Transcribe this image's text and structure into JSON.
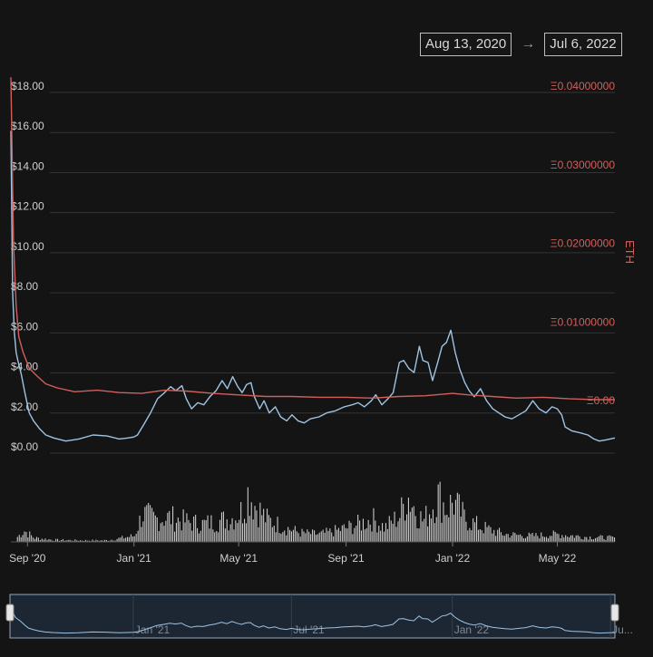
{
  "date_range": {
    "start": "Aug 13, 2020",
    "arrow": "→",
    "end": "Jul 6, 2022"
  },
  "chart_data": {
    "type": "line",
    "title": "",
    "x_start": "2020-08-13",
    "x_end": "2022-07-06",
    "x_ticks": [
      {
        "date": "2020-09-01",
        "label": "Sep '20"
      },
      {
        "date": "2021-01-01",
        "label": "Jan '21"
      },
      {
        "date": "2021-05-01",
        "label": "May '21"
      },
      {
        "date": "2021-09-01",
        "label": "Sep '21"
      },
      {
        "date": "2022-01-01",
        "label": "Jan '22"
      },
      {
        "date": "2022-05-01",
        "label": "May '22"
      }
    ],
    "y_left": {
      "label": "",
      "ylim": [
        0,
        18
      ],
      "ticks": [
        {
          "value": 0,
          "label": "$0.00"
        },
        {
          "value": 2,
          "label": "$2.00"
        },
        {
          "value": 4,
          "label": "$4.00"
        },
        {
          "value": 6,
          "label": "$6.00"
        },
        {
          "value": 8,
          "label": "$8.00"
        },
        {
          "value": 10,
          "label": "$10.00"
        },
        {
          "value": 12,
          "label": "$12.00"
        },
        {
          "value": 14,
          "label": "$14.00"
        },
        {
          "value": 16,
          "label": "$16.00"
        },
        {
          "value": 18,
          "label": "$18.00"
        }
      ]
    },
    "y_right": {
      "label": "ETH",
      "ticks": [
        {
          "value": 0,
          "label": "Ξ0.00"
        },
        {
          "value": 0.01,
          "label": "Ξ0.01000000"
        },
        {
          "value": 0.02,
          "label": "Ξ0.02000000"
        },
        {
          "value": 0.03,
          "label": "Ξ0.03000000"
        },
        {
          "value": 0.04,
          "label": "Ξ0.04000000"
        }
      ]
    },
    "series": [
      {
        "color": "#9fc3e3",
        "axis": "left",
        "points": [
          [
            "2020-08-13",
            16.0
          ],
          [
            "2020-08-15",
            8.0
          ],
          [
            "2020-08-17",
            6.0
          ],
          [
            "2020-08-19",
            5.0
          ],
          [
            "2020-08-21",
            4.6
          ],
          [
            "2020-08-25",
            3.9
          ],
          [
            "2020-08-29",
            3.0
          ],
          [
            "2020-09-03",
            2.0
          ],
          [
            "2020-09-08",
            1.6
          ],
          [
            "2020-09-15",
            1.2
          ],
          [
            "2020-09-22",
            0.9
          ],
          [
            "2020-10-01",
            0.75
          ],
          [
            "2020-10-15",
            0.6
          ],
          [
            "2020-10-30",
            0.7
          ],
          [
            "2020-11-15",
            0.9
          ],
          [
            "2020-12-01",
            0.85
          ],
          [
            "2020-12-15",
            0.7
          ],
          [
            "2020-12-25",
            0.75
          ],
          [
            "2021-01-01",
            0.8
          ],
          [
            "2021-01-05",
            0.9
          ],
          [
            "2021-01-12",
            1.4
          ],
          [
            "2021-01-20",
            2.0
          ],
          [
            "2021-01-28",
            2.7
          ],
          [
            "2021-02-05",
            3.0
          ],
          [
            "2021-02-12",
            3.3
          ],
          [
            "2021-02-18",
            3.1
          ],
          [
            "2021-02-25",
            3.35
          ],
          [
            "2021-03-02",
            2.7
          ],
          [
            "2021-03-08",
            2.2
          ],
          [
            "2021-03-15",
            2.5
          ],
          [
            "2021-03-22",
            2.4
          ],
          [
            "2021-03-29",
            2.8
          ],
          [
            "2021-04-05",
            3.1
          ],
          [
            "2021-04-12",
            3.6
          ],
          [
            "2021-04-18",
            3.2
          ],
          [
            "2021-04-24",
            3.8
          ],
          [
            "2021-04-30",
            3.3
          ],
          [
            "2021-05-05",
            3.0
          ],
          [
            "2021-05-10",
            3.4
          ],
          [
            "2021-05-15",
            3.5
          ],
          [
            "2021-05-19",
            2.8
          ],
          [
            "2021-05-25",
            2.2
          ],
          [
            "2021-05-30",
            2.6
          ],
          [
            "2021-06-05",
            2.0
          ],
          [
            "2021-06-12",
            2.3
          ],
          [
            "2021-06-18",
            1.8
          ],
          [
            "2021-06-25",
            1.6
          ],
          [
            "2021-07-01",
            1.9
          ],
          [
            "2021-07-08",
            1.6
          ],
          [
            "2021-07-15",
            1.5
          ],
          [
            "2021-07-22",
            1.7
          ],
          [
            "2021-08-01",
            1.8
          ],
          [
            "2021-08-10",
            2.0
          ],
          [
            "2021-08-20",
            2.1
          ],
          [
            "2021-08-30",
            2.3
          ],
          [
            "2021-09-08",
            2.4
          ],
          [
            "2021-09-15",
            2.5
          ],
          [
            "2021-09-22",
            2.3
          ],
          [
            "2021-09-30",
            2.6
          ],
          [
            "2021-10-05",
            2.9
          ],
          [
            "2021-10-12",
            2.4
          ],
          [
            "2021-10-19",
            2.7
          ],
          [
            "2021-10-25",
            3.0
          ],
          [
            "2021-11-01",
            4.5
          ],
          [
            "2021-11-06",
            4.6
          ],
          [
            "2021-11-12",
            4.2
          ],
          [
            "2021-11-18",
            4.0
          ],
          [
            "2021-11-24",
            5.3
          ],
          [
            "2021-11-28",
            4.6
          ],
          [
            "2021-12-04",
            4.5
          ],
          [
            "2021-12-09",
            3.6
          ],
          [
            "2021-12-15",
            4.5
          ],
          [
            "2021-12-20",
            5.3
          ],
          [
            "2021-12-25",
            5.5
          ],
          [
            "2021-12-30",
            6.1
          ],
          [
            "2022-01-04",
            5.0
          ],
          [
            "2022-01-09",
            4.2
          ],
          [
            "2022-01-15",
            3.5
          ],
          [
            "2022-01-20",
            3.1
          ],
          [
            "2022-01-26",
            2.8
          ],
          [
            "2022-02-02",
            3.2
          ],
          [
            "2022-02-09",
            2.6
          ],
          [
            "2022-02-16",
            2.2
          ],
          [
            "2022-02-23",
            2.0
          ],
          [
            "2022-03-02",
            1.8
          ],
          [
            "2022-03-10",
            1.7
          ],
          [
            "2022-03-18",
            1.9
          ],
          [
            "2022-03-26",
            2.1
          ],
          [
            "2022-04-03",
            2.6
          ],
          [
            "2022-04-10",
            2.2
          ],
          [
            "2022-04-18",
            2.0
          ],
          [
            "2022-04-25",
            2.3
          ],
          [
            "2022-05-01",
            2.2
          ],
          [
            "2022-05-06",
            1.9
          ],
          [
            "2022-05-10",
            1.3
          ],
          [
            "2022-05-18",
            1.1
          ],
          [
            "2022-05-28",
            1.0
          ],
          [
            "2022-06-05",
            0.9
          ],
          [
            "2022-06-12",
            0.7
          ],
          [
            "2022-06-18",
            0.6
          ],
          [
            "2022-06-25",
            0.65
          ],
          [
            "2022-07-06",
            0.75
          ]
        ]
      },
      {
        "color": "#d0605c",
        "axis": "right",
        "points": [
          [
            "2020-08-13",
            0.041
          ],
          [
            "2020-08-16",
            0.02
          ],
          [
            "2020-08-19",
            0.012
          ],
          [
            "2020-08-22",
            0.008
          ],
          [
            "2020-08-27",
            0.006
          ],
          [
            "2020-09-03",
            0.004
          ],
          [
            "2020-09-12",
            0.003
          ],
          [
            "2020-09-22",
            0.002
          ],
          [
            "2020-10-05",
            0.0015
          ],
          [
            "2020-10-25",
            0.001
          ],
          [
            "2020-11-20",
            0.0012
          ],
          [
            "2020-12-15",
            0.0009
          ],
          [
            "2021-01-10",
            0.0008
          ],
          [
            "2021-02-05",
            0.0012
          ],
          [
            "2021-03-01",
            0.0011
          ],
          [
            "2021-04-01",
            0.0008
          ],
          [
            "2021-05-01",
            0.0006
          ],
          [
            "2021-06-01",
            0.0004
          ],
          [
            "2021-07-01",
            0.0004
          ],
          [
            "2021-08-01",
            0.0003
          ],
          [
            "2021-09-01",
            0.0003
          ],
          [
            "2021-10-01",
            0.0002
          ],
          [
            "2021-11-01",
            0.0004
          ],
          [
            "2021-12-01",
            0.0005
          ],
          [
            "2022-01-01",
            0.0008
          ],
          [
            "2022-01-20",
            0.0006
          ],
          [
            "2022-02-15",
            0.0004
          ],
          [
            "2022-03-15",
            0.0002
          ],
          [
            "2022-04-15",
            0.0003
          ],
          [
            "2022-05-15",
            0.0001
          ],
          [
            "2022-06-15",
            0.0
          ],
          [
            "2022-07-06",
            0.0
          ]
        ]
      }
    ],
    "volume": {
      "color": "#e8e8e8",
      "ylim": [
        0,
        100
      ],
      "points": [
        [
          "2020-08-20",
          10
        ],
        [
          "2020-08-28",
          22
        ],
        [
          "2020-09-08",
          8
        ],
        [
          "2020-10-01",
          4
        ],
        [
          "2020-11-01",
          3
        ],
        [
          "2020-12-01",
          3
        ],
        [
          "2021-01-01",
          12
        ],
        [
          "2021-01-10",
          55
        ],
        [
          "2021-01-25",
          45
        ],
        [
          "2021-02-10",
          48
        ],
        [
          "2021-03-01",
          40
        ],
        [
          "2021-03-20",
          35
        ],
        [
          "2021-04-10",
          42
        ],
        [
          "2021-04-25",
          48
        ],
        [
          "2021-05-05",
          62
        ],
        [
          "2021-05-12",
          100
        ],
        [
          "2021-05-18",
          75
        ],
        [
          "2021-06-01",
          45
        ],
        [
          "2021-06-20",
          30
        ],
        [
          "2021-07-10",
          18
        ],
        [
          "2021-08-01",
          15
        ],
        [
          "2021-08-20",
          22
        ],
        [
          "2021-09-10",
          32
        ],
        [
          "2021-10-01",
          45
        ],
        [
          "2021-10-15",
          28
        ],
        [
          "2021-11-01",
          52
        ],
        [
          "2021-11-10",
          92
        ],
        [
          "2021-11-20",
          60
        ],
        [
          "2021-11-28",
          40
        ],
        [
          "2021-12-08",
          70
        ],
        [
          "2021-12-15",
          90
        ],
        [
          "2021-12-25",
          65
        ],
        [
          "2022-01-01",
          80
        ],
        [
          "2022-01-15",
          45
        ],
        [
          "2022-02-01",
          30
        ],
        [
          "2022-03-01",
          15
        ],
        [
          "2022-04-01",
          12
        ],
        [
          "2022-05-01",
          15
        ],
        [
          "2022-06-01",
          10
        ],
        [
          "2022-07-06",
          8
        ]
      ]
    },
    "navigator_ticks": [
      {
        "date": "2021-01-01",
        "label": "Jan '21"
      },
      {
        "date": "2021-07-01",
        "label": "Jul '21"
      },
      {
        "date": "2022-01-01",
        "label": "Jan '22"
      },
      {
        "date": "2022-07-01",
        "label": "Ju..."
      }
    ],
    "grid": true,
    "legend": "none"
  }
}
